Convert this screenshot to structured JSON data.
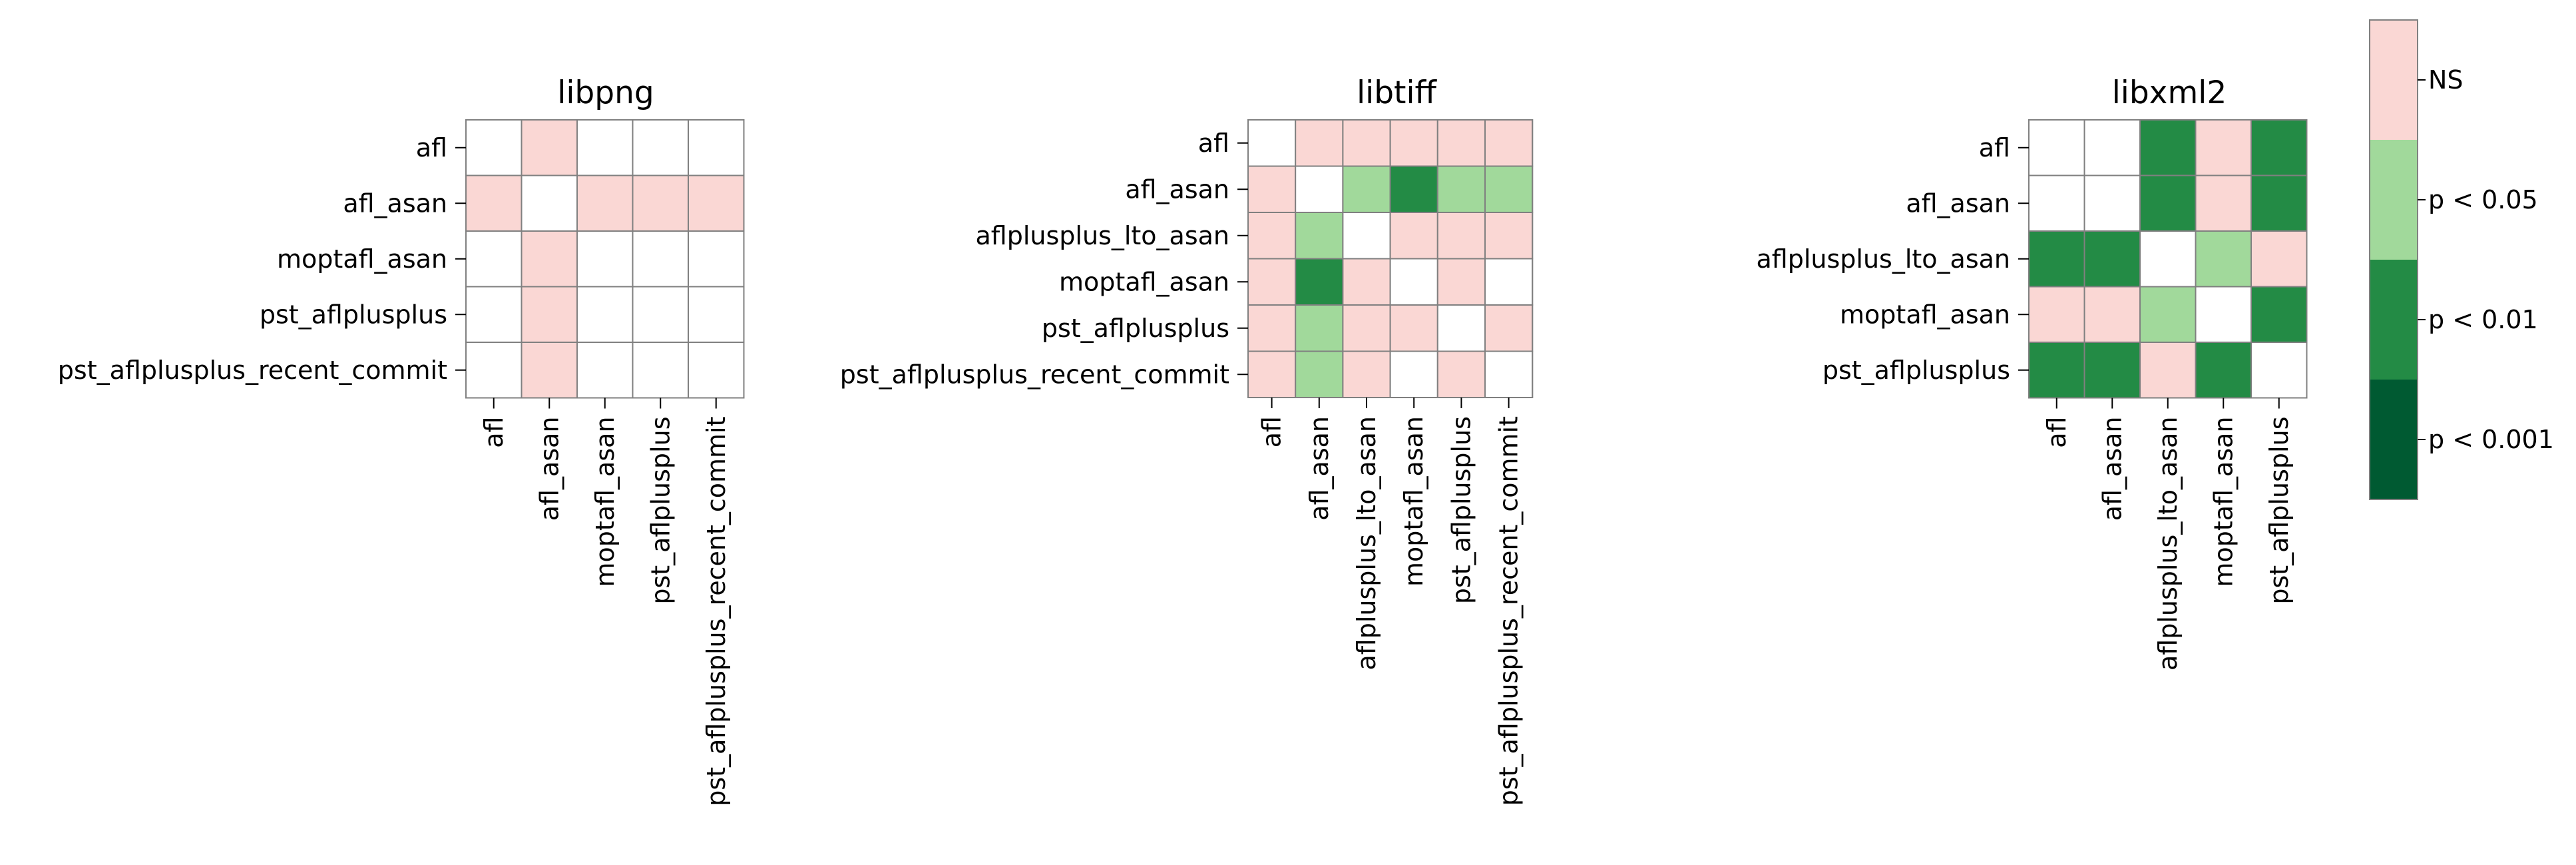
{
  "chart_data": {
    "type": "heatmap",
    "colorbar": {
      "ticks": [
        "NS",
        "p < 0.05",
        "p < 0.01",
        "p < 0.001"
      ],
      "colors": {
        "diag": "#ffffff",
        "NS": "#fad7d4",
        "p < 0.05": "#a1d99b",
        "p < 0.01": "#238b45",
        "p < 0.001": "#005a32"
      },
      "levels_bottom_to_top": [
        "p < 0.001",
        "p < 0.01",
        "p < 0.05",
        "NS"
      ]
    },
    "panels": [
      {
        "title": "libpng",
        "labels": [
          "afl",
          "afl_asan",
          "moptafl_asan",
          "pst_aflplusplus",
          "pst_aflplusplus_recent_commit"
        ],
        "matrix": [
          [
            "diag",
            "NS",
            "diag",
            "diag",
            "diag"
          ],
          [
            "NS",
            "diag",
            "NS",
            "NS",
            "NS"
          ],
          [
            "diag",
            "NS",
            "diag",
            "diag",
            "diag"
          ],
          [
            "diag",
            "NS",
            "diag",
            "diag",
            "diag"
          ],
          [
            "diag",
            "NS",
            "diag",
            "diag",
            "diag"
          ]
        ]
      },
      {
        "title": "libtiff",
        "labels": [
          "afl",
          "afl_asan",
          "aflplusplus_lto_asan",
          "moptafl_asan",
          "pst_aflplusplus",
          "pst_aflplusplus_recent_commit"
        ],
        "matrix": [
          [
            "diag",
            "NS",
            "NS",
            "NS",
            "NS",
            "NS"
          ],
          [
            "NS",
            "diag",
            "p < 0.05",
            "p < 0.01",
            "p < 0.05",
            "p < 0.05"
          ],
          [
            "NS",
            "p < 0.05",
            "diag",
            "NS",
            "NS",
            "NS"
          ],
          [
            "NS",
            "p < 0.01",
            "NS",
            "diag",
            "NS",
            "diag"
          ],
          [
            "NS",
            "p < 0.05",
            "NS",
            "NS",
            "diag",
            "NS"
          ],
          [
            "NS",
            "p < 0.05",
            "NS",
            "diag",
            "NS",
            "diag"
          ]
        ]
      },
      {
        "title": "libxml2",
        "labels": [
          "afl",
          "afl_asan",
          "aflplusplus_lto_asan",
          "moptafl_asan",
          "pst_aflplusplus"
        ],
        "matrix": [
          [
            "diag",
            "diag",
            "p < 0.01",
            "NS",
            "p < 0.01"
          ],
          [
            "diag",
            "diag",
            "p < 0.01",
            "NS",
            "p < 0.01"
          ],
          [
            "p < 0.01",
            "p < 0.01",
            "diag",
            "p < 0.05",
            "NS"
          ],
          [
            "NS",
            "NS",
            "p < 0.05",
            "diag",
            "p < 0.01"
          ],
          [
            "p < 0.01",
            "p < 0.01",
            "NS",
            "p < 0.01",
            "diag"
          ]
        ]
      }
    ]
  }
}
